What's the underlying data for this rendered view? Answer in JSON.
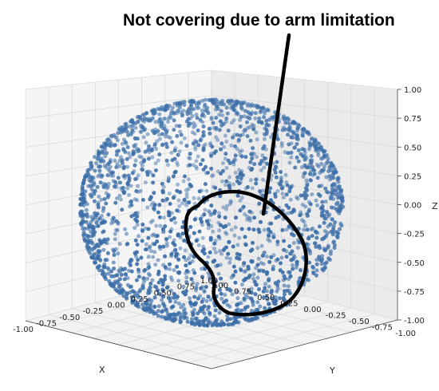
{
  "chart_data": {
    "type": "scatter",
    "projection": "3d",
    "title": "",
    "annotation": "Not covering due to arm limitation",
    "xlabel": "X",
    "ylabel": "Y",
    "zlabel": "Z",
    "xlim": [
      -1.0,
      1.0
    ],
    "ylim": [
      -1.0,
      1.0
    ],
    "zlim": [
      -1.0,
      1.0
    ],
    "x_ticks": [
      "-1.00",
      "-0.75",
      "-0.50",
      "-0.25",
      "0.00",
      "0.25",
      "0.50",
      "0.75",
      "1.00"
    ],
    "y_ticks": [
      "-1.00",
      "-0.75",
      "-0.50",
      "-0.25",
      "0.00",
      "0.25",
      "0.50",
      "0.75",
      "1.00"
    ],
    "z_ticks": [
      "-1.00",
      "-0.75",
      "-0.50",
      "-0.25",
      "0.00",
      "0.25",
      "0.50",
      "0.75",
      "1.00"
    ],
    "grid": true,
    "marker_color": "#3b6ea8",
    "annotation_color": "#000000",
    "description_shape": "unit sphere surface point cloud",
    "uncovered_region": {
      "x_range": [
        0.1,
        0.75
      ],
      "y_range": [
        -0.9,
        -0.2
      ],
      "z_range": [
        -0.85,
        0.05
      ]
    }
  }
}
